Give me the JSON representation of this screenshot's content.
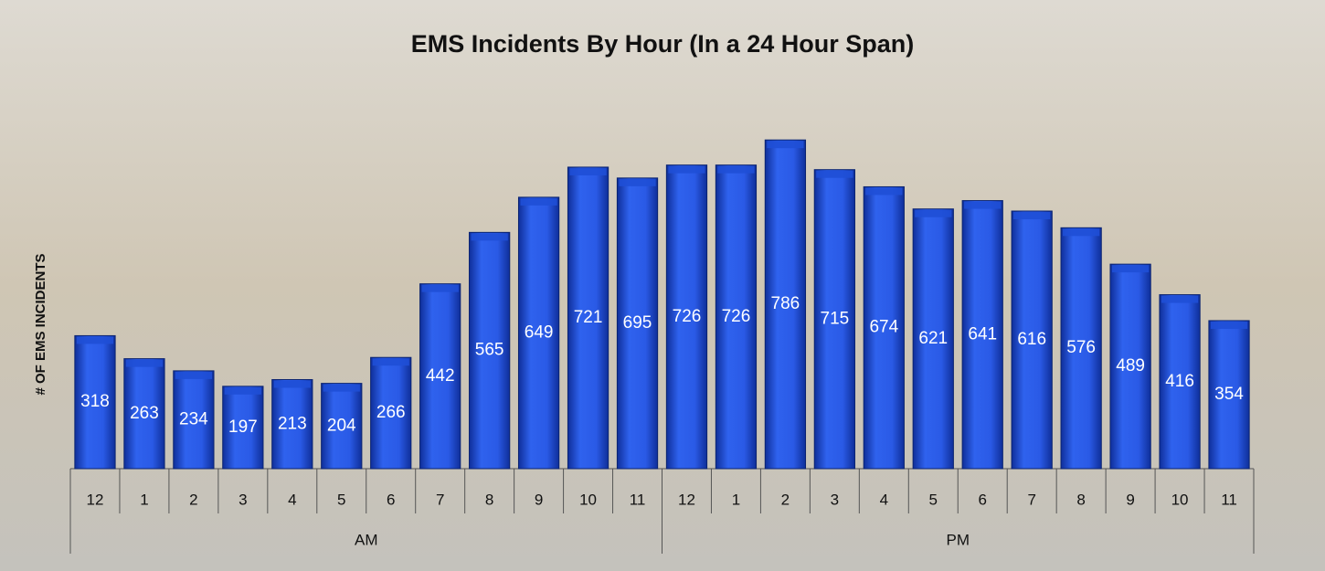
{
  "chart_data": {
    "type": "bar",
    "title": "EMS Incidents By Hour (In a 24 Hour Span)",
    "y_label": "# OF EMS INCIDENTS",
    "groups": [
      {
        "label": "AM",
        "categories": [
          "12",
          "1",
          "2",
          "3",
          "4",
          "5",
          "6",
          "7",
          "8",
          "9",
          "10",
          "11"
        ]
      },
      {
        "label": "PM",
        "categories": [
          "12",
          "1",
          "2",
          "3",
          "4",
          "5",
          "6",
          "7",
          "8",
          "9",
          "10",
          "11"
        ]
      }
    ],
    "values": [
      318,
      263,
      234,
      197,
      213,
      204,
      266,
      442,
      565,
      649,
      721,
      695,
      726,
      726,
      786,
      715,
      674,
      621,
      641,
      616,
      576,
      489,
      416,
      354
    ],
    "color": "#1f4fd6",
    "ylim": [
      0,
      900
    ]
  }
}
